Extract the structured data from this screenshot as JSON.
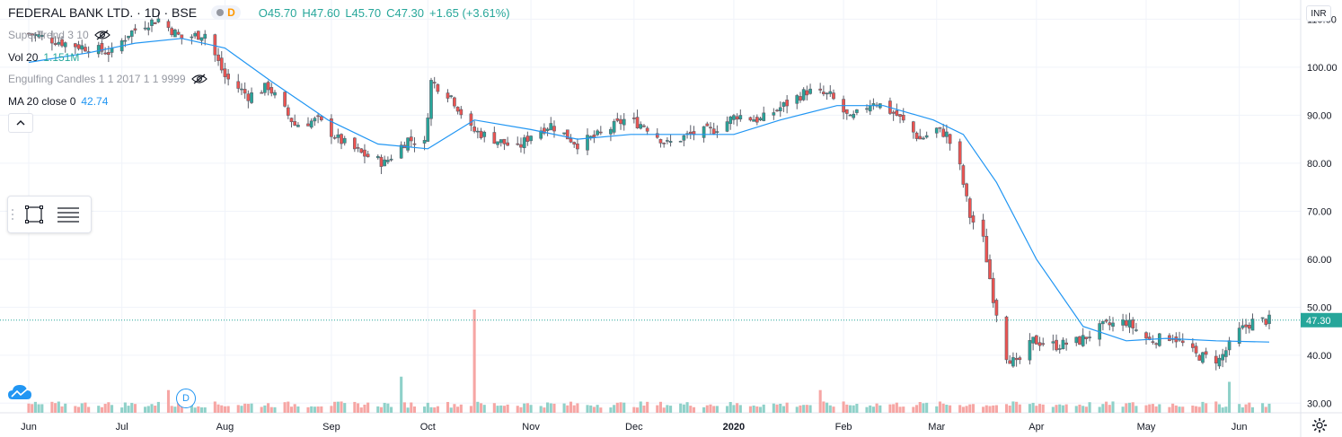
{
  "header": {
    "symbol_title": "FEDERAL BANK LTD. · 1D · BSE",
    "delayed_badge": "D",
    "open": "O45.70",
    "high": "H47.60",
    "low": "L45.70",
    "close": "C47.30",
    "change": "+1.65 (+3.61%)"
  },
  "indicators": [
    {
      "label": "SuperTrend 3 10",
      "value": "",
      "hidden": true
    },
    {
      "label": "Vol 20",
      "value": "1.151M",
      "hidden": false
    },
    {
      "label": "Engulfing Candles 1 1 2017 1 1 9999",
      "value": "",
      "hidden": true
    },
    {
      "label": "MA 20 close 0",
      "value": "42.74",
      "hidden": false
    }
  ],
  "currency_button": "INR",
  "dividend_marker": "D",
  "icons": {
    "eye_hidden": "eye-off-icon",
    "collapse": "chevron-up-icon",
    "rectangle_tool": "rectangle-icon",
    "lines_tool": "horizontal-lines-icon",
    "settings": "gear-icon",
    "logo": "cloud-logo-icon"
  },
  "colors": {
    "up": "#26a69a",
    "down": "#ef5350",
    "ma": "#2196f3",
    "vol_up": "#8fd1c9",
    "vol_down": "#f6a6a4",
    "grid": "#f0f3fa",
    "price_tag": "#26a69a"
  },
  "chart_data": {
    "type": "candlestick",
    "title": "FEDERAL BANK LTD. · 1D · BSE",
    "y_ticks": [
      "110.00",
      "100.00",
      "90.00",
      "80.00",
      "70.00",
      "60.00",
      "50.00",
      "40.00",
      "30.00"
    ],
    "y_range": [
      28,
      114
    ],
    "last_price_label": "47.30",
    "x_ticks": [
      "Jun",
      "Jul",
      "Aug",
      "Sep",
      "Oct",
      "Nov",
      "Dec",
      "2020",
      "Feb",
      "Mar",
      "Apr",
      "May",
      "Jun"
    ],
    "x_tick_dates": [
      "2019-06-03",
      "2019-07-01",
      "2019-08-01",
      "2019-09-02",
      "2019-10-01",
      "2019-11-01",
      "2019-12-02",
      "2020-01-01",
      "2020-02-03",
      "2020-03-02",
      "2020-04-01",
      "2020-05-04",
      "2020-06-01"
    ],
    "ma_period": 20,
    "date_range": [
      "2019-06-03",
      "2020-06-10"
    ],
    "close_series": [
      [
        "2019-06-03",
        107
      ],
      [
        "2019-06-14",
        105
      ],
      [
        "2019-06-21",
        104
      ],
      [
        "2019-06-28",
        103
      ],
      [
        "2019-07-03",
        107
      ],
      [
        "2019-07-08",
        109
      ],
      [
        "2019-07-12",
        110
      ],
      [
        "2019-07-19",
        106
      ],
      [
        "2019-07-26",
        107
      ],
      [
        "2019-08-01",
        98
      ],
      [
        "2019-08-08",
        94
      ],
      [
        "2019-08-14",
        96
      ],
      [
        "2019-08-22",
        88
      ],
      [
        "2019-08-29",
        89
      ],
      [
        "2019-09-04",
        85
      ],
      [
        "2019-09-11",
        82
      ],
      [
        "2019-09-18",
        80
      ],
      [
        "2019-09-25",
        85
      ],
      [
        "2019-09-30",
        84
      ],
      [
        "2019-10-02",
        97
      ],
      [
        "2019-10-08",
        94
      ],
      [
        "2019-10-14",
        87
      ],
      [
        "2019-10-21",
        85
      ],
      [
        "2019-10-28",
        83
      ],
      [
        "2019-11-01",
        86
      ],
      [
        "2019-11-07",
        88
      ],
      [
        "2019-11-15",
        84
      ],
      [
        "2019-11-22",
        86
      ],
      [
        "2019-11-29",
        89
      ],
      [
        "2019-12-05",
        88
      ],
      [
        "2019-12-12",
        84
      ],
      [
        "2019-12-19",
        86
      ],
      [
        "2019-12-26",
        87
      ],
      [
        "2020-01-02",
        90
      ],
      [
        "2020-01-09",
        89
      ],
      [
        "2020-01-16",
        92
      ],
      [
        "2020-01-23",
        95
      ],
      [
        "2020-01-30",
        94
      ],
      [
        "2020-02-05",
        89
      ],
      [
        "2020-02-12",
        93
      ],
      [
        "2020-02-19",
        90
      ],
      [
        "2020-02-26",
        85
      ],
      [
        "2020-03-02",
        87
      ],
      [
        "2020-03-05",
        86
      ],
      [
        "2020-03-09",
        79
      ],
      [
        "2020-03-12",
        69
      ],
      [
        "2020-03-16",
        64
      ],
      [
        "2020-03-19",
        52
      ],
      [
        "2020-03-23",
        40
      ],
      [
        "2020-03-26",
        38
      ],
      [
        "2020-03-31",
        43
      ],
      [
        "2020-04-07",
        42
      ],
      [
        "2020-04-14",
        43
      ],
      [
        "2020-04-21",
        46
      ],
      [
        "2020-04-28",
        47
      ],
      [
        "2020-05-05",
        43
      ],
      [
        "2020-05-12",
        44
      ],
      [
        "2020-05-19",
        40
      ],
      [
        "2020-05-26",
        39
      ],
      [
        "2020-06-01",
        45
      ],
      [
        "2020-06-05",
        47
      ],
      [
        "2020-06-10",
        47.3
      ]
    ],
    "ma_series": [
      [
        "2019-06-03",
        101
      ],
      [
        "2019-06-21",
        103
      ],
      [
        "2019-07-05",
        105
      ],
      [
        "2019-07-19",
        106
      ],
      [
        "2019-08-01",
        104
      ],
      [
        "2019-08-15",
        97
      ],
      [
        "2019-09-01",
        89
      ],
      [
        "2019-09-16",
        84
      ],
      [
        "2019-10-01",
        83
      ],
      [
        "2019-10-15",
        89
      ],
      [
        "2019-11-01",
        87
      ],
      [
        "2019-11-15",
        85
      ],
      [
        "2019-12-01",
        86
      ],
      [
        "2019-12-15",
        86
      ],
      [
        "2020-01-01",
        86
      ],
      [
        "2020-01-15",
        89
      ],
      [
        "2020-02-01",
        92
      ],
      [
        "2020-02-15",
        92
      ],
      [
        "2020-03-01",
        89
      ],
      [
        "2020-03-10",
        86
      ],
      [
        "2020-03-20",
        76
      ],
      [
        "2020-04-01",
        60
      ],
      [
        "2020-04-15",
        46
      ],
      [
        "2020-04-28",
        43
      ],
      [
        "2020-05-10",
        43.5
      ],
      [
        "2020-05-25",
        43
      ],
      [
        "2020-06-10",
        42.74
      ]
    ],
    "volume_peaks": [
      [
        "2019-10-15",
        1.0
      ],
      [
        "2019-09-23",
        0.35
      ],
      [
        "2020-01-27",
        0.22
      ],
      [
        "2020-05-29",
        0.3
      ],
      [
        "2019-07-15",
        0.22
      ]
    ]
  }
}
